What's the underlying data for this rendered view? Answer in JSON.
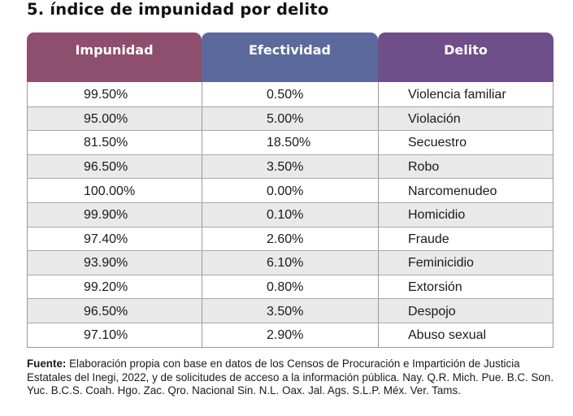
{
  "title": "5. índice de impunidad por delito",
  "table": {
    "headers": [
      "Impunidad",
      "Efectividad",
      "Delito"
    ],
    "header_colors": [
      "#8e4e6d",
      "#5c699c",
      "#6e4f89"
    ],
    "rows": [
      {
        "impunidad": "99.50%",
        "efectividad": "0.50%",
        "delito": "Violencia familiar"
      },
      {
        "impunidad": "95.00%",
        "efectividad": "5.00%",
        "delito": "Violación"
      },
      {
        "impunidad": "81.50%",
        "efectividad": "18.50%",
        "delito": "Secuestro"
      },
      {
        "impunidad": "96.50%",
        "efectividad": "3.50%",
        "delito": "Robo"
      },
      {
        "impunidad": "100.00%",
        "efectividad": "0.00%",
        "delito": "Narcomenudeo"
      },
      {
        "impunidad": "99.90%",
        "efectividad": "0.10%",
        "delito": "Homicidio"
      },
      {
        "impunidad": "97.40%",
        "efectividad": "2.60%",
        "delito": "Fraude"
      },
      {
        "impunidad": "93.90%",
        "efectividad": "6.10%",
        "delito": "Feminicidio"
      },
      {
        "impunidad": "99.20%",
        "efectividad": "0.80%",
        "delito": "Extorsión"
      },
      {
        "impunidad": "96.50%",
        "efectividad": "3.50%",
        "delito": "Despojo"
      },
      {
        "impunidad": "97.10%",
        "efectividad": "2.90%",
        "delito": "Abuso sexual"
      }
    ]
  },
  "source": {
    "label": "Fuente:",
    "text": " Elaboración propia con base en datos de los Censos de Procuración e Impartición de Justicia Estatales del Inegi, 2022, y de solicitudes de acceso a la información pública. Nay. Q.R. Mich. Pue. B.C. Son. Yuc. B.C.S. Coah. Hgo. Zac. Qro. Nacional Sin. N.L. Oax. Jal. Ags. S.L.P. Méx. Ver. Tams."
  }
}
